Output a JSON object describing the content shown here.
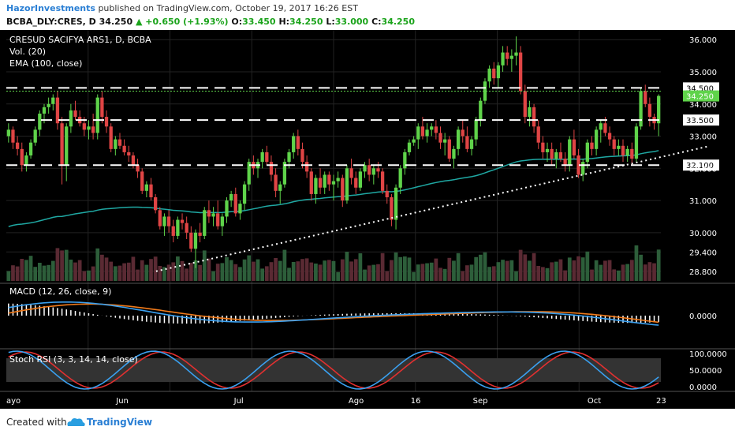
{
  "header": {
    "author": "HazorInvestments",
    "published_text": "published on TradingView.com, October 19, 2017 16:26 EST",
    "symbol": "BCBA_DLY:CRES, D",
    "last": "34.250",
    "change": "+0.650 (+1.93%)",
    "open_label": "O:",
    "open": "33.450",
    "high_label": "H:",
    "high": "34.250",
    "low_label": "L:",
    "low": "33.000",
    "close_label": "C:",
    "close": "34.250"
  },
  "legend": {
    "title": "CRESUD SACIFYA ARS1, D, BCBA",
    "vol": "Vol. (20)",
    "ema": "EMA (100, close)",
    "macd": "MACD (12, 26, close, 9)",
    "stoch": "Stoch RSI (3, 3, 14, 14, close)"
  },
  "footer": {
    "created_with": "Created with",
    "brand": "TradingView"
  },
  "colors": {
    "background": "#000000",
    "up": "#5fd34a",
    "down": "#e04545",
    "ema": "#1fa8a3",
    "macd_line": "#3aa0f0",
    "signal_line": "#f07a1a",
    "stoch_k": "#3aa0f0",
    "stoch_d": "#e23030",
    "grid": "#222222",
    "axis_text": "#ffffff"
  },
  "chart_data": {
    "type": "candlestick",
    "price_axis": {
      "range": [
        28.5,
        36.3
      ],
      "ticks": [
        "28.800",
        "29.400",
        "30.000",
        "31.000",
        "32.000",
        "33.000",
        "34.000",
        "35.000",
        "36.000"
      ]
    },
    "x_ticks": [
      "ayo",
      "Jun",
      "Jul",
      "Ago",
      "16",
      "Sep",
      "Oct",
      "23"
    ],
    "levels": [
      {
        "label": "34.500",
        "value": 34.5,
        "style": "dashed"
      },
      {
        "label": "33.500",
        "value": 33.5,
        "style": "dashed"
      },
      {
        "label": "32.100",
        "value": 32.1,
        "style": "dashed"
      }
    ],
    "last_price": {
      "label": "34.250",
      "value": 34.25
    },
    "trendline": {
      "from": [
        0.53,
        28.8
      ],
      "to": [
        0.905,
        32.4
      ],
      "style": "dotted"
    },
    "candles": [
      [
        33.0,
        33.4,
        32.8,
        33.2
      ],
      [
        33.2,
        33.3,
        32.6,
        32.8
      ],
      [
        32.8,
        33.0,
        32.4,
        32.6
      ],
      [
        32.6,
        32.8,
        31.9,
        32.1
      ],
      [
        32.1,
        32.5,
        31.9,
        32.4
      ],
      [
        32.4,
        32.9,
        32.3,
        32.8
      ],
      [
        32.8,
        33.3,
        32.7,
        33.2
      ],
      [
        33.2,
        33.8,
        33.0,
        33.7
      ],
      [
        33.7,
        34.0,
        33.4,
        33.9
      ],
      [
        33.9,
        34.2,
        33.7,
        34.0
      ],
      [
        34.0,
        34.3,
        33.8,
        34.2
      ],
      [
        34.2,
        34.4,
        33.2,
        33.4
      ],
      [
        33.4,
        33.6,
        31.5,
        32.1
      ],
      [
        32.1,
        33.4,
        31.6,
        33.3
      ],
      [
        33.3,
        34.0,
        33.1,
        33.8
      ],
      [
        33.8,
        34.1,
        33.5,
        33.6
      ],
      [
        33.6,
        33.8,
        33.3,
        33.4
      ],
      [
        33.4,
        33.6,
        33.0,
        33.2
      ],
      [
        33.2,
        33.5,
        32.9,
        33.3
      ],
      [
        33.3,
        33.7,
        32.9,
        33.1
      ],
      [
        33.1,
        34.3,
        32.9,
        34.2
      ],
      [
        34.2,
        34.4,
        33.4,
        33.6
      ],
      [
        33.6,
        33.8,
        33.1,
        33.3
      ],
      [
        33.3,
        33.4,
        32.5,
        32.6
      ],
      [
        32.6,
        33.0,
        32.4,
        32.9
      ],
      [
        32.9,
        33.1,
        32.6,
        32.7
      ],
      [
        32.7,
        32.9,
        32.4,
        32.5
      ],
      [
        32.5,
        32.7,
        32.2,
        32.4
      ],
      [
        32.4,
        32.5,
        32.0,
        32.1
      ],
      [
        32.1,
        32.3,
        31.7,
        31.9
      ],
      [
        31.9,
        32.0,
        31.2,
        31.3
      ],
      [
        31.3,
        31.6,
        31.1,
        31.5
      ],
      [
        31.5,
        31.7,
        31.0,
        31.1
      ],
      [
        31.1,
        31.2,
        30.6,
        30.7
      ],
      [
        30.7,
        30.8,
        30.1,
        30.2
      ],
      [
        30.2,
        30.6,
        29.9,
        30.5
      ],
      [
        30.5,
        30.7,
        30.0,
        30.2
      ],
      [
        30.2,
        30.4,
        29.7,
        29.9
      ],
      [
        29.9,
        30.5,
        29.8,
        30.4
      ],
      [
        30.4,
        30.6,
        30.1,
        30.3
      ],
      [
        30.3,
        30.5,
        29.8,
        30.0
      ],
      [
        30.0,
        30.2,
        29.4,
        29.5
      ],
      [
        29.5,
        30.1,
        28.9,
        30.0
      ],
      [
        30.0,
        30.3,
        29.7,
        29.9
      ],
      [
        29.9,
        30.8,
        29.8,
        30.7
      ],
      [
        30.7,
        31.0,
        30.3,
        30.5
      ],
      [
        30.5,
        30.8,
        30.2,
        30.6
      ],
      [
        30.6,
        31.0,
        30.1,
        30.2
      ],
      [
        30.2,
        30.6,
        29.9,
        30.5
      ],
      [
        30.5,
        31.1,
        30.3,
        31.0
      ],
      [
        31.0,
        31.3,
        30.8,
        31.2
      ],
      [
        31.2,
        31.4,
        30.5,
        30.6
      ],
      [
        30.6,
        31.0,
        30.4,
        30.9
      ],
      [
        30.9,
        31.6,
        30.7,
        31.5
      ],
      [
        31.5,
        32.3,
        31.3,
        32.2
      ],
      [
        32.2,
        32.4,
        31.8,
        32.0
      ],
      [
        32.0,
        32.3,
        31.7,
        32.2
      ],
      [
        32.2,
        32.6,
        32.0,
        32.5
      ],
      [
        32.5,
        32.7,
        32.1,
        32.2
      ],
      [
        32.2,
        32.4,
        31.6,
        31.8
      ],
      [
        31.8,
        32.0,
        31.1,
        31.3
      ],
      [
        31.3,
        31.6,
        30.9,
        31.5
      ],
      [
        31.5,
        32.3,
        31.4,
        32.2
      ],
      [
        32.2,
        32.6,
        32.0,
        32.5
      ],
      [
        32.5,
        33.1,
        32.3,
        33.0
      ],
      [
        33.0,
        33.2,
        32.4,
        32.6
      ],
      [
        32.6,
        32.8,
        32.0,
        32.2
      ],
      [
        32.2,
        32.4,
        31.7,
        31.9
      ],
      [
        31.9,
        32.0,
        31.0,
        31.2
      ],
      [
        31.2,
        31.8,
        30.9,
        31.7
      ],
      [
        31.7,
        32.0,
        31.2,
        31.4
      ],
      [
        31.4,
        31.9,
        31.2,
        31.8
      ],
      [
        31.8,
        31.9,
        31.3,
        31.5
      ],
      [
        31.5,
        31.8,
        31.0,
        31.6
      ],
      [
        31.6,
        31.9,
        31.4,
        31.7
      ],
      [
        31.7,
        31.8,
        30.8,
        31.0
      ],
      [
        31.0,
        32.1,
        30.9,
        32.0
      ],
      [
        32.0,
        32.3,
        31.5,
        31.7
      ],
      [
        31.7,
        31.9,
        31.2,
        31.4
      ],
      [
        31.4,
        32.0,
        31.3,
        31.9
      ],
      [
        31.9,
        32.2,
        31.7,
        32.1
      ],
      [
        32.1,
        32.3,
        31.6,
        31.8
      ],
      [
        31.8,
        32.1,
        31.5,
        32.0
      ],
      [
        32.0,
        32.2,
        31.7,
        31.9
      ],
      [
        31.9,
        32.0,
        31.2,
        31.3
      ],
      [
        31.3,
        31.5,
        30.9,
        31.1
      ],
      [
        31.1,
        31.2,
        30.2,
        30.4
      ],
      [
        30.4,
        31.5,
        30.1,
        31.4
      ],
      [
        31.4,
        32.1,
        31.2,
        32.0
      ],
      [
        32.0,
        32.6,
        31.8,
        32.5
      ],
      [
        32.5,
        32.9,
        32.4,
        32.8
      ],
      [
        32.8,
        33.0,
        32.7,
        32.9
      ],
      [
        32.9,
        33.4,
        32.6,
        33.3
      ],
      [
        33.3,
        33.6,
        32.9,
        33.0
      ],
      [
        33.0,
        33.4,
        32.8,
        33.2
      ],
      [
        33.2,
        33.4,
        33.0,
        33.3
      ],
      [
        33.3,
        33.5,
        32.9,
        33.1
      ],
      [
        33.1,
        33.3,
        32.6,
        32.8
      ],
      [
        32.8,
        33.1,
        32.4,
        32.9
      ],
      [
        32.9,
        33.0,
        32.2,
        32.3
      ],
      [
        32.3,
        32.7,
        32.0,
        32.6
      ],
      [
        32.6,
        33.3,
        32.4,
        33.2
      ],
      [
        33.2,
        33.5,
        32.8,
        33.0
      ],
      [
        33.0,
        33.3,
        32.5,
        32.6
      ],
      [
        32.6,
        33.0,
        32.4,
        32.9
      ],
      [
        32.9,
        33.6,
        32.7,
        33.5
      ],
      [
        33.5,
        34.2,
        33.3,
        34.1
      ],
      [
        34.1,
        34.8,
        34.0,
        34.7
      ],
      [
        34.7,
        35.2,
        34.5,
        35.1
      ],
      [
        35.1,
        35.3,
        34.6,
        34.8
      ],
      [
        34.8,
        35.3,
        34.5,
        35.2
      ],
      [
        35.2,
        35.8,
        35.0,
        35.6
      ],
      [
        35.6,
        35.8,
        35.2,
        35.4
      ],
      [
        35.4,
        35.7,
        35.0,
        35.5
      ],
      [
        35.5,
        36.1,
        35.2,
        35.6
      ],
      [
        35.6,
        35.8,
        34.3,
        34.4
      ],
      [
        34.4,
        34.6,
        33.4,
        33.6
      ],
      [
        33.6,
        34.1,
        33.3,
        33.9
      ],
      [
        33.9,
        34.0,
        33.1,
        33.3
      ],
      [
        33.3,
        33.5,
        32.6,
        32.8
      ],
      [
        32.8,
        33.0,
        32.3,
        32.5
      ],
      [
        32.5,
        32.8,
        32.2,
        32.6
      ],
      [
        32.6,
        32.8,
        32.1,
        32.3
      ],
      [
        32.3,
        32.6,
        32.0,
        32.5
      ],
      [
        32.5,
        32.8,
        32.2,
        32.3
      ],
      [
        32.3,
        32.5,
        31.9,
        32.1
      ],
      [
        32.1,
        33.0,
        31.9,
        32.9
      ],
      [
        32.9,
        33.2,
        32.3,
        32.4
      ],
      [
        32.4,
        32.6,
        31.7,
        31.8
      ],
      [
        31.8,
        32.3,
        31.6,
        32.2
      ],
      [
        32.2,
        32.9,
        32.0,
        32.8
      ],
      [
        32.8,
        33.0,
        32.4,
        32.6
      ],
      [
        32.6,
        33.3,
        32.4,
        33.2
      ],
      [
        33.2,
        33.5,
        32.8,
        33.4
      ],
      [
        33.4,
        33.6,
        33.0,
        33.1
      ],
      [
        33.1,
        33.3,
        32.7,
        32.9
      ],
      [
        32.9,
        33.0,
        32.4,
        32.6
      ],
      [
        32.6,
        32.9,
        32.4,
        32.7
      ],
      [
        32.7,
        32.9,
        32.2,
        32.4
      ],
      [
        32.4,
        32.7,
        32.2,
        32.6
      ],
      [
        32.6,
        32.8,
        32.1,
        32.3
      ],
      [
        32.3,
        33.4,
        32.2,
        33.3
      ],
      [
        33.3,
        34.5,
        33.2,
        34.4
      ],
      [
        34.4,
        34.6,
        33.9,
        34.0
      ],
      [
        34.0,
        34.2,
        33.3,
        33.6
      ],
      [
        33.6,
        33.7,
        33.2,
        33.4
      ],
      [
        33.4,
        34.3,
        33.0,
        34.25
      ]
    ],
    "ema_100": [
      28.9,
      33.0,
      30.8,
      32.2
    ],
    "volume_axis": {
      "range": [
        0,
        100
      ]
    },
    "macd_axis": {
      "range": [
        -1,
        1
      ],
      "ticks": [
        "0.0000"
      ]
    },
    "stoch_axis": {
      "range": [
        0,
        100
      ],
      "ticks": [
        "100.0000",
        "50.0000",
        "0.0000"
      ]
    }
  }
}
